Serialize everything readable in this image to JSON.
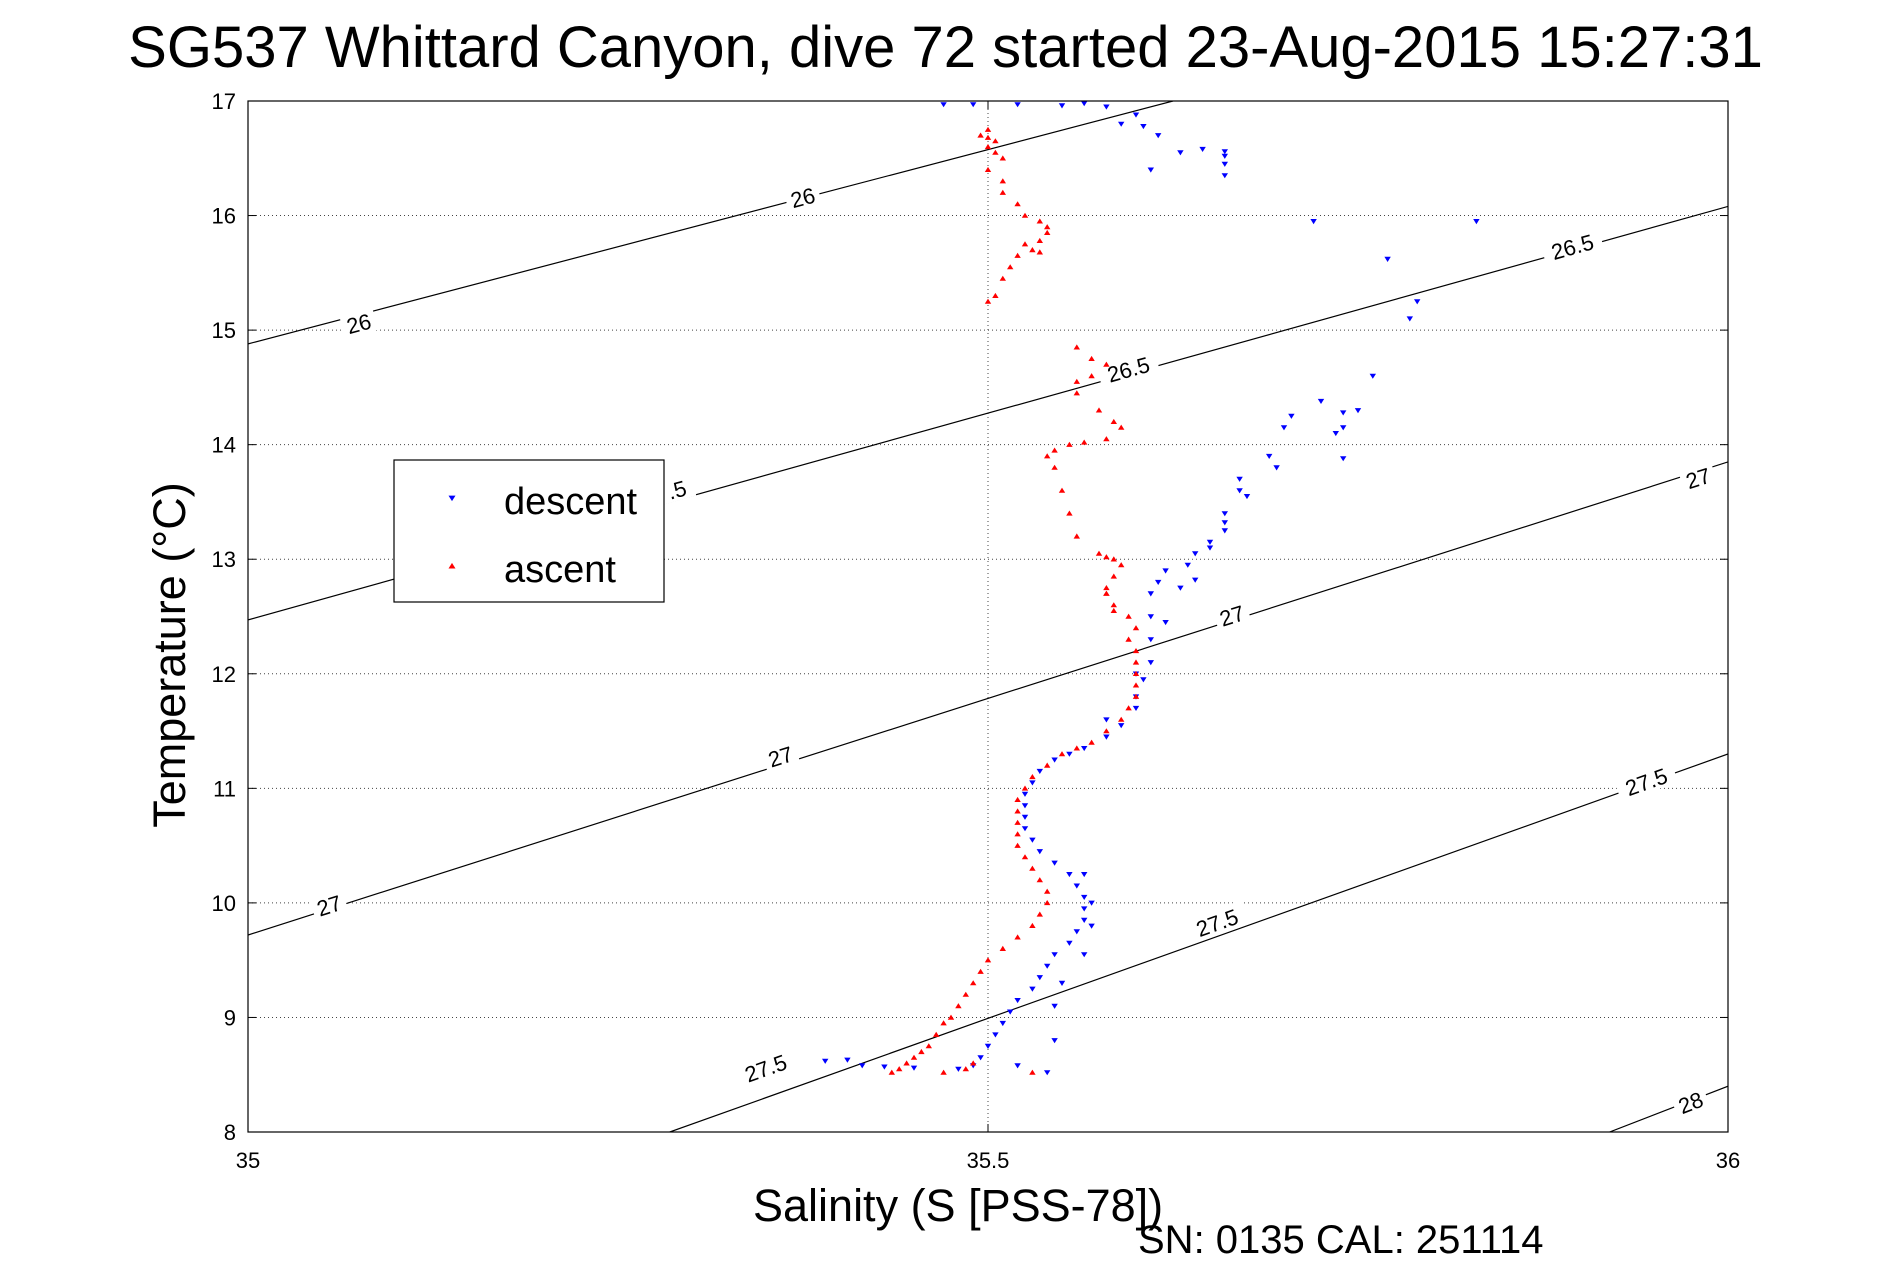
{
  "chart_data": {
    "type": "scatter",
    "title": "SG537 Whittard Canyon, dive 72 started 23-Aug-2015 15:27:31",
    "xlabel": "Salinity (S [PSS-78])",
    "ylabel": "Temperature (°C)",
    "footer": "SN: 0135  CAL: 251114",
    "xlim": [
      35,
      36
    ],
    "ylim": [
      8,
      17
    ],
    "x_ticks": [
      "35",
      "35.5",
      "36"
    ],
    "y_ticks": [
      "8",
      "9",
      "10",
      "11",
      "12",
      "13",
      "14",
      "15",
      "16",
      "17"
    ],
    "grid": true,
    "legend_position": "upper-left",
    "colors": {
      "descent": "#0000ff",
      "ascent": "#ff0000",
      "contour": "#000000"
    },
    "contours": [
      {
        "level": "26",
        "points": [
          [
            35.0,
            14.88
          ],
          [
            35.625,
            17.0
          ]
        ]
      },
      {
        "level": "26.5",
        "points": [
          [
            35.0,
            12.47
          ],
          [
            36.0,
            16.08
          ]
        ]
      },
      {
        "level": "27",
        "points": [
          [
            35.0,
            9.72
          ],
          [
            36.0,
            13.85
          ]
        ]
      },
      {
        "level": "27.5",
        "points": [
          [
            35.285,
            8.0
          ],
          [
            36.0,
            11.3
          ]
        ]
      },
      {
        "level": "28",
        "points": [
          [
            35.92,
            8.0
          ],
          [
            36.0,
            8.4
          ]
        ]
      }
    ],
    "contour_labels": [
      {
        "text": "26",
        "x": 35.375,
        "y": 16.15
      },
      {
        "text": "26",
        "x": 35.075,
        "y": 15.05
      },
      {
        "text": "26.5",
        "x": 35.895,
        "y": 15.72
      },
      {
        "text": "26.5",
        "x": 35.595,
        "y": 14.65
      },
      {
        "text": ".5",
        "x": 35.29,
        "y": 13.6
      },
      {
        "text": "27",
        "x": 35.98,
        "y": 13.7
      },
      {
        "text": "27",
        "x": 35.665,
        "y": 12.5
      },
      {
        "text": "27",
        "x": 35.36,
        "y": 11.27
      },
      {
        "text": "27",
        "x": 35.055,
        "y": 9.97
      },
      {
        "text": "27.5",
        "x": 35.945,
        "y": 11.05
      },
      {
        "text": "27.5",
        "x": 35.655,
        "y": 9.82
      },
      {
        "text": "27.5",
        "x": 35.35,
        "y": 8.55
      },
      {
        "text": "28",
        "x": 35.975,
        "y": 8.25
      }
    ],
    "series": [
      {
        "name": "descent",
        "marker": "triangle-down",
        "points": [
          [
            35.47,
            16.97
          ],
          [
            35.49,
            16.97
          ],
          [
            35.52,
            16.97
          ],
          [
            35.55,
            16.96
          ],
          [
            35.58,
            16.95
          ],
          [
            35.565,
            16.98
          ],
          [
            35.6,
            16.88
          ],
          [
            35.605,
            16.78
          ],
          [
            35.59,
            16.8
          ],
          [
            35.615,
            16.7
          ],
          [
            35.63,
            16.55
          ],
          [
            35.61,
            16.4
          ],
          [
            35.66,
            16.35
          ],
          [
            35.66,
            16.45
          ],
          [
            35.66,
            16.52
          ],
          [
            35.66,
            16.56
          ],
          [
            35.645,
            16.58
          ],
          [
            35.72,
            15.95
          ],
          [
            35.83,
            15.95
          ],
          [
            35.77,
            15.62
          ],
          [
            35.785,
            15.1
          ],
          [
            35.79,
            15.25
          ],
          [
            35.76,
            14.6
          ],
          [
            35.725,
            14.38
          ],
          [
            35.75,
            14.3
          ],
          [
            35.74,
            14.28
          ],
          [
            35.74,
            14.15
          ],
          [
            35.735,
            14.1
          ],
          [
            35.74,
            13.88
          ],
          [
            35.695,
            13.8
          ],
          [
            35.67,
            13.7
          ],
          [
            35.67,
            13.6
          ],
          [
            35.66,
            13.4
          ],
          [
            35.66,
            13.32
          ],
          [
            35.65,
            13.15
          ],
          [
            35.64,
            13.05
          ],
          [
            35.635,
            12.95
          ],
          [
            35.62,
            12.9
          ],
          [
            35.615,
            12.8
          ],
          [
            35.61,
            12.7
          ],
          [
            35.61,
            12.5
          ],
          [
            35.61,
            12.3
          ],
          [
            35.61,
            12.1
          ],
          [
            35.605,
            11.95
          ],
          [
            35.6,
            11.8
          ],
          [
            35.6,
            11.7
          ],
          [
            35.59,
            11.55
          ],
          [
            35.58,
            11.45
          ],
          [
            35.565,
            11.35
          ],
          [
            35.555,
            11.3
          ],
          [
            35.545,
            11.25
          ],
          [
            35.535,
            11.15
          ],
          [
            35.53,
            11.05
          ],
          [
            35.525,
            10.95
          ],
          [
            35.525,
            10.85
          ],
          [
            35.525,
            10.75
          ],
          [
            35.525,
            10.65
          ],
          [
            35.53,
            10.55
          ],
          [
            35.535,
            10.45
          ],
          [
            35.545,
            10.35
          ],
          [
            35.555,
            10.25
          ],
          [
            35.56,
            10.15
          ],
          [
            35.565,
            10.05
          ],
          [
            35.565,
            9.95
          ],
          [
            35.565,
            9.85
          ],
          [
            35.56,
            9.75
          ],
          [
            35.555,
            9.65
          ],
          [
            35.545,
            9.55
          ],
          [
            35.54,
            9.45
          ],
          [
            35.535,
            9.35
          ],
          [
            35.53,
            9.25
          ],
          [
            35.52,
            9.15
          ],
          [
            35.515,
            9.05
          ],
          [
            35.51,
            8.95
          ],
          [
            35.505,
            8.85
          ],
          [
            35.5,
            8.75
          ],
          [
            35.495,
            8.65
          ],
          [
            35.49,
            8.58
          ],
          [
            35.48,
            8.55
          ],
          [
            35.45,
            8.56
          ],
          [
            35.43,
            8.57
          ],
          [
            35.415,
            8.58
          ],
          [
            35.39,
            8.62
          ],
          [
            35.405,
            8.63
          ],
          [
            35.52,
            8.58
          ],
          [
            35.54,
            8.52
          ],
          [
            35.545,
            8.8
          ],
          [
            35.545,
            9.1
          ],
          [
            35.55,
            9.3
          ],
          [
            35.565,
            9.55
          ],
          [
            35.57,
            9.8
          ],
          [
            35.57,
            10.0
          ],
          [
            35.565,
            10.25
          ],
          [
            35.58,
            11.6
          ],
          [
            35.6,
            12.0
          ],
          [
            35.62,
            12.45
          ],
          [
            35.63,
            12.75
          ],
          [
            35.64,
            12.82
          ],
          [
            35.65,
            13.1
          ],
          [
            35.66,
            13.25
          ],
          [
            35.675,
            13.55
          ],
          [
            35.69,
            13.9
          ],
          [
            35.7,
            14.15
          ],
          [
            35.705,
            14.25
          ]
        ]
      },
      {
        "name": "ascent",
        "marker": "triangle-up",
        "points": [
          [
            35.5,
            16.75
          ],
          [
            35.495,
            16.7
          ],
          [
            35.5,
            16.68
          ],
          [
            35.505,
            16.65
          ],
          [
            35.5,
            16.6
          ],
          [
            35.505,
            16.55
          ],
          [
            35.51,
            16.5
          ],
          [
            35.5,
            16.4
          ],
          [
            35.51,
            16.3
          ],
          [
            35.51,
            16.2
          ],
          [
            35.52,
            16.1
          ],
          [
            35.525,
            16.0
          ],
          [
            35.535,
            15.95
          ],
          [
            35.54,
            15.9
          ],
          [
            35.54,
            15.85
          ],
          [
            35.535,
            15.78
          ],
          [
            35.53,
            15.7
          ],
          [
            35.52,
            15.65
          ],
          [
            35.515,
            15.55
          ],
          [
            35.51,
            15.45
          ],
          [
            35.505,
            15.3
          ],
          [
            35.5,
            15.25
          ],
          [
            35.525,
            15.75
          ],
          [
            35.535,
            15.68
          ],
          [
            35.56,
            14.85
          ],
          [
            35.57,
            14.75
          ],
          [
            35.58,
            14.7
          ],
          [
            35.57,
            14.6
          ],
          [
            35.56,
            14.55
          ],
          [
            35.56,
            14.45
          ],
          [
            35.575,
            14.3
          ],
          [
            35.585,
            14.2
          ],
          [
            35.59,
            14.15
          ],
          [
            35.58,
            14.05
          ],
          [
            35.565,
            14.02
          ],
          [
            35.555,
            14.0
          ],
          [
            35.545,
            13.95
          ],
          [
            35.54,
            13.9
          ],
          [
            35.545,
            13.8
          ],
          [
            35.55,
            13.6
          ],
          [
            35.555,
            13.4
          ],
          [
            35.56,
            13.2
          ],
          [
            35.575,
            13.05
          ],
          [
            35.585,
            13.0
          ],
          [
            35.59,
            12.95
          ],
          [
            35.585,
            12.85
          ],
          [
            35.58,
            12.75
          ],
          [
            35.58,
            12.7
          ],
          [
            35.585,
            12.6
          ],
          [
            35.595,
            12.5
          ],
          [
            35.6,
            12.4
          ],
          [
            35.595,
            12.3
          ],
          [
            35.6,
            12.2
          ],
          [
            35.6,
            12.1
          ],
          [
            35.6,
            12.0
          ],
          [
            35.6,
            11.9
          ],
          [
            35.6,
            11.8
          ],
          [
            35.595,
            11.7
          ],
          [
            35.59,
            11.6
          ],
          [
            35.58,
            11.5
          ],
          [
            35.57,
            11.4
          ],
          [
            35.56,
            11.35
          ],
          [
            35.55,
            11.3
          ],
          [
            35.54,
            11.2
          ],
          [
            35.53,
            11.1
          ],
          [
            35.525,
            11.0
          ],
          [
            35.52,
            10.9
          ],
          [
            35.52,
            10.8
          ],
          [
            35.52,
            10.7
          ],
          [
            35.52,
            10.6
          ],
          [
            35.52,
            10.5
          ],
          [
            35.525,
            10.4
          ],
          [
            35.53,
            10.3
          ],
          [
            35.535,
            10.2
          ],
          [
            35.54,
            10.1
          ],
          [
            35.54,
            10.0
          ],
          [
            35.535,
            9.9
          ],
          [
            35.53,
            9.8
          ],
          [
            35.52,
            9.7
          ],
          [
            35.51,
            9.6
          ],
          [
            35.5,
            9.5
          ],
          [
            35.495,
            9.4
          ],
          [
            35.49,
            9.3
          ],
          [
            35.485,
            9.2
          ],
          [
            35.48,
            9.1
          ],
          [
            35.475,
            9.0
          ],
          [
            35.47,
            8.95
          ],
          [
            35.465,
            8.85
          ],
          [
            35.46,
            8.75
          ],
          [
            35.455,
            8.7
          ],
          [
            35.45,
            8.65
          ],
          [
            35.445,
            8.6
          ],
          [
            35.44,
            8.55
          ],
          [
            35.435,
            8.52
          ],
          [
            35.47,
            8.52
          ],
          [
            35.53,
            8.52
          ],
          [
            35.485,
            8.55
          ],
          [
            35.49,
            8.6
          ],
          [
            35.58,
            12.7
          ],
          [
            35.585,
            12.55
          ],
          [
            35.58,
            13.02
          ]
        ]
      }
    ]
  }
}
